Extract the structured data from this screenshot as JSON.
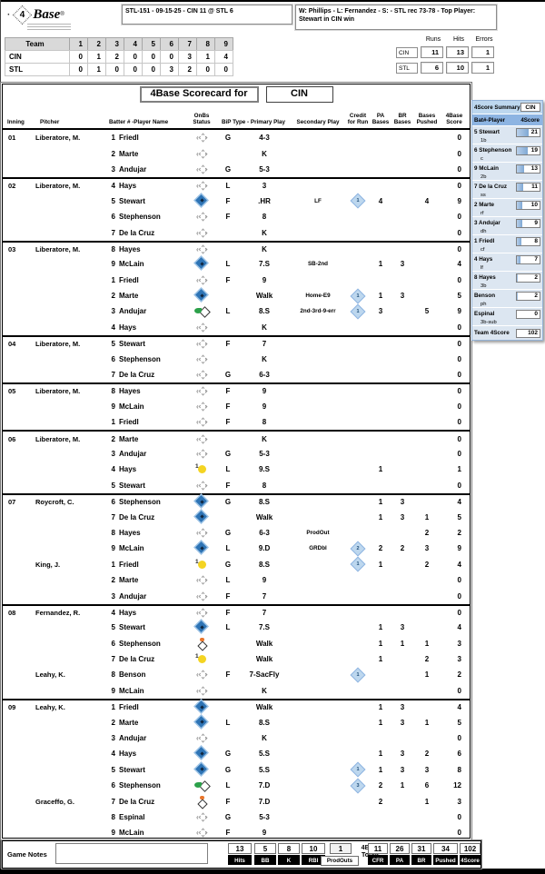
{
  "header": {
    "logo_dot": "·",
    "logo_4": "4",
    "logo_base": "Base",
    "logo_reg": "®",
    "game_info": "STL-151 - 09-15-25 - CIN 11 @ STL 6",
    "result_info": "W: Phillips - L: Fernandez - S:  - STL rec 73-78 - Top Player: Stewart in CIN win"
  },
  "linescore": {
    "team_header": "Team",
    "innings": [
      "1",
      "2",
      "3",
      "4",
      "5",
      "6",
      "7",
      "8",
      "9"
    ],
    "rows": [
      {
        "team": "CIN",
        "values": [
          "0",
          "1",
          "2",
          "0",
          "0",
          "0",
          "3",
          "1",
          "4"
        ]
      },
      {
        "team": "STL",
        "values": [
          "0",
          "1",
          "0",
          "0",
          "0",
          "3",
          "2",
          "0",
          "0"
        ]
      }
    ]
  },
  "rhe": {
    "headers": [
      "Runs",
      "Hits",
      "Errors"
    ],
    "rows": [
      {
        "team": "CIN",
        "values": [
          "11",
          "13",
          "1"
        ]
      },
      {
        "team": "STL",
        "values": [
          "6",
          "10",
          "1"
        ]
      }
    ]
  },
  "scorecard": {
    "title": "4Base Scorecard for",
    "team": "CIN",
    "header_cells": [
      "Inning",
      "Pitcher",
      "Batter # -Player Name",
      "OnBs Status",
      "BiP Type - Primary Play",
      "Secondary Play",
      "Credit\nfor Run",
      "PA\nBases",
      "BR\nBases",
      "Bases\nPushed",
      "4Base\nScore"
    ],
    "innings": [
      {
        "label": "01",
        "rows": [
          {
            "pitcher": "Liberatore, M.",
            "num": "1",
            "name": "Friedl",
            "status": "empty",
            "bip": "G",
            "primary": "4-3",
            "score": "0"
          },
          {
            "num": "2",
            "name": "Marte",
            "status": "empty",
            "primary": "K",
            "score": "0"
          },
          {
            "num": "3",
            "name": "Andujar",
            "status": "empty",
            "bip": "G",
            "primary": "5-3",
            "score": "0"
          }
        ]
      },
      {
        "label": "02",
        "rows": [
          {
            "pitcher": "Liberatore, M.",
            "num": "4",
            "name": "Hays",
            "status": "empty",
            "bip": "L",
            "primary": "3",
            "score": "0"
          },
          {
            "num": "5",
            "name": "Stewart",
            "status": "blue",
            "bip": "F",
            "primary": ".HR",
            "secondary": "LF",
            "credit": "1",
            "pa": "4",
            "pushed": "4",
            "score": "9"
          },
          {
            "num": "6",
            "name": "Stephenson",
            "status": "empty",
            "bip": "F",
            "primary": "8",
            "score": "0"
          },
          {
            "num": "7",
            "name": "De la Cruz",
            "status": "empty",
            "primary": "K",
            "score": "0"
          }
        ]
      },
      {
        "label": "03",
        "rows": [
          {
            "pitcher": "Liberatore, M.",
            "num": "8",
            "name": "Hayes",
            "status": "empty",
            "primary": "K",
            "score": "0"
          },
          {
            "num": "9",
            "name": "McLain",
            "status": "blue",
            "bip": "L",
            "primary": "7.S",
            "secondary": "SB-2nd",
            "pa": "1",
            "br": "3",
            "score": "4"
          },
          {
            "num": "1",
            "name": "Friedl",
            "status": "empty",
            "bip": "F",
            "primary": "9",
            "score": "0"
          },
          {
            "num": "2",
            "name": "Marte",
            "status": "blue",
            "primary": "Walk",
            "secondary": "Home-E9",
            "credit": "1",
            "pa": "1",
            "br": "3",
            "score": "5"
          },
          {
            "num": "3",
            "name": "Andujar",
            "status": "green",
            "bip": "L",
            "primary": "8.S",
            "secondary": "2nd-3rd-9-err",
            "credit": "1",
            "pa": "3",
            "pushed": "5",
            "score": "9"
          },
          {
            "num": "4",
            "name": "Hays",
            "status": "empty",
            "primary": "K",
            "score": "0"
          }
        ]
      },
      {
        "label": "04",
        "rows": [
          {
            "pitcher": "Liberatore, M.",
            "num": "5",
            "name": "Stewart",
            "status": "empty",
            "bip": "F",
            "primary": "7",
            "score": "0"
          },
          {
            "num": "6",
            "name": "Stephenson",
            "status": "empty",
            "primary": "K",
            "score": "0"
          },
          {
            "num": "7",
            "name": "De la Cruz",
            "status": "empty",
            "bip": "G",
            "primary": "6-3",
            "score": "0"
          }
        ]
      },
      {
        "label": "05",
        "rows": [
          {
            "pitcher": "Liberatore, M.",
            "num": "8",
            "name": "Hayes",
            "status": "empty",
            "bip": "F",
            "primary": "9",
            "score": "0"
          },
          {
            "num": "9",
            "name": "McLain",
            "status": "empty",
            "bip": "F",
            "primary": "9",
            "score": "0"
          },
          {
            "num": "1",
            "name": "Friedl",
            "status": "empty",
            "bip": "F",
            "primary": "8",
            "score": "0"
          }
        ]
      },
      {
        "label": "06",
        "rows": [
          {
            "pitcher": "Liberatore, M.",
            "num": "2",
            "name": "Marte",
            "status": "empty",
            "primary": "K",
            "score": "0"
          },
          {
            "num": "3",
            "name": "Andujar",
            "status": "empty",
            "bip": "G",
            "primary": "5-3",
            "score": "0"
          },
          {
            "num": "4",
            "name": "Hays",
            "status": "yellow",
            "bip": "L",
            "primary": "9.S",
            "pa": "1",
            "score": "1"
          },
          {
            "num": "5",
            "name": "Stewart",
            "status": "empty",
            "bip": "F",
            "primary": "8",
            "score": "0"
          }
        ]
      },
      {
        "label": "07",
        "rows": [
          {
            "pitcher": "Roycroft, C.",
            "num": "6",
            "name": "Stephenson",
            "status": "blue",
            "bip": "G",
            "primary": "8.S",
            "pa": "1",
            "br": "3",
            "score": "4"
          },
          {
            "num": "7",
            "name": "De la Cruz",
            "status": "blue",
            "primary": "Walk",
            "pa": "1",
            "br": "3",
            "pushed": "1",
            "score": "5"
          },
          {
            "num": "8",
            "name": "Hayes",
            "status": "empty",
            "bip": "G",
            "primary": "6-3",
            "secondary": "ProdOut",
            "pushed": "2",
            "score": "2"
          },
          {
            "num": "9",
            "name": "McLain",
            "status": "blue",
            "bip": "L",
            "primary": "9.D",
            "secondary": "GRDbl",
            "credit": "2",
            "pa": "2",
            "br": "2",
            "pushed": "3",
            "score": "9"
          },
          {
            "pitcher": "King, J.",
            "num": "1",
            "name": "Friedl",
            "status": "yellow",
            "bip": "G",
            "primary": "8.S",
            "credit": "1",
            "pa": "1",
            "pushed": "2",
            "score": "4"
          },
          {
            "num": "2",
            "name": "Marte",
            "status": "empty",
            "bip": "L",
            "primary": "9",
            "score": "0"
          },
          {
            "num": "3",
            "name": "Andujar",
            "status": "empty",
            "bip": "F",
            "primary": "7",
            "score": "0"
          }
        ]
      },
      {
        "label": "08",
        "rows": [
          {
            "pitcher": "Fernandez, R.",
            "num": "4",
            "name": "Hays",
            "status": "empty",
            "bip": "F",
            "primary": "7",
            "score": "0"
          },
          {
            "num": "5",
            "name": "Stewart",
            "status": "blue",
            "bip": "L",
            "primary": "7.S",
            "pa": "1",
            "br": "3",
            "score": "4"
          },
          {
            "num": "6",
            "name": "Stephenson",
            "status": "orange",
            "primary": "Walk",
            "pa": "1",
            "br": "1",
            "pushed": "1",
            "score": "3"
          },
          {
            "num": "7",
            "name": "De la Cruz",
            "status": "yellow",
            "primary": "Walk",
            "pa": "1",
            "pushed": "2",
            "score": "3"
          },
          {
            "pitcher": "Leahy, K.",
            "num": "8",
            "name": "Benson",
            "status": "empty",
            "bip": "F",
            "primary": "7-SacFly",
            "credit": "1",
            "pushed": "1",
            "score": "2"
          },
          {
            "num": "9",
            "name": "McLain",
            "status": "empty",
            "primary": "K",
            "score": "0"
          }
        ]
      },
      {
        "label": "09",
        "rows": [
          {
            "pitcher": "Leahy, K.",
            "num": "1",
            "name": "Friedl",
            "status": "blue",
            "primary": "Walk",
            "pa": "1",
            "br": "3",
            "score": "4"
          },
          {
            "num": "2",
            "name": "Marte",
            "status": "blue",
            "bip": "L",
            "primary": "8.S",
            "pa": "1",
            "br": "3",
            "pushed": "1",
            "score": "5"
          },
          {
            "num": "3",
            "name": "Andujar",
            "status": "empty",
            "primary": "K",
            "score": "0"
          },
          {
            "num": "4",
            "name": "Hays",
            "status": "blue",
            "bip": "G",
            "primary": "5.S",
            "pa": "1",
            "br": "3",
            "pushed": "2",
            "score": "6"
          },
          {
            "num": "5",
            "name": "Stewart",
            "status": "blue",
            "bip": "G",
            "primary": "5.S",
            "credit": "1",
            "pa": "1",
            "br": "3",
            "pushed": "3",
            "score": "8"
          },
          {
            "num": "6",
            "name": "Stephenson",
            "status": "green",
            "bip": "L",
            "primary": "7.D",
            "credit": "3",
            "pa": "2",
            "br": "1",
            "pushed": "6",
            "score": "12"
          },
          {
            "pitcher": "Graceffo, G.",
            "num": "7",
            "name": "De la Cruz",
            "status": "orange",
            "bip": "F",
            "primary": "7.D",
            "pa": "2",
            "pushed": "1",
            "score": "3"
          },
          {
            "num": "8",
            "name": "Espinal",
            "status": "empty",
            "bip": "G",
            "primary": "5-3",
            "score": "0"
          },
          {
            "num": "9",
            "name": "McLain",
            "status": "empty",
            "bip": "F",
            "primary": "9",
            "score": "0"
          }
        ]
      }
    ]
  },
  "sidebar": {
    "title": "4Score Summary",
    "team": "CIN",
    "col1": "Bat#-Player",
    "col2": "4Score",
    "players": [
      {
        "bat": "5",
        "name": "Stewart",
        "pos": "1b",
        "score": "21"
      },
      {
        "bat": "6",
        "name": "Stephenson",
        "pos": "c",
        "score": "19"
      },
      {
        "bat": "9",
        "name": "McLain",
        "pos": "2b",
        "score": "13"
      },
      {
        "bat": "7",
        "name": "De la Cruz",
        "pos": "ss",
        "score": "11"
      },
      {
        "bat": "2",
        "name": "Marte",
        "pos": "rf",
        "score": "10"
      },
      {
        "bat": "3",
        "name": "Andujar",
        "pos": "dh",
        "score": "9"
      },
      {
        "bat": "1",
        "name": "Friedl",
        "pos": "cf",
        "score": "8"
      },
      {
        "bat": "4",
        "name": "Hays",
        "pos": "lf",
        "score": "7"
      },
      {
        "bat": "8",
        "name": "Hayes",
        "pos": "3b",
        "score": "2"
      },
      {
        "bat": "",
        "name": "Benson",
        "pos": "ph",
        "score": "2"
      },
      {
        "bat": "",
        "name": "Espinal",
        "pos": "3b-sub",
        "score": "0"
      }
    ],
    "team_label": "Team 4Score",
    "team_score": "102"
  },
  "totals": {
    "game_notes_label": "Game Notes",
    "stats": [
      {
        "value": "13",
        "label": "Hits"
      },
      {
        "value": "5",
        "label": "BB"
      },
      {
        "value": "8",
        "label": "K"
      },
      {
        "value": "10",
        "label": "RBI"
      }
    ],
    "prodouts": {
      "value": "1",
      "label": "ProdOuts"
    },
    "totals_label": "4Base\nTotals",
    "totals": [
      {
        "value": "11",
        "label": "CFR"
      },
      {
        "value": "26",
        "label": "PA"
      },
      {
        "value": "31",
        "label": "BR"
      },
      {
        "value": "34",
        "label": "Pushed"
      },
      {
        "value": "102",
        "label": "4Score"
      }
    ]
  },
  "colors": {
    "scored_diamond": "#2e74b5",
    "credit_diamond": "#bdd7ee",
    "sidebar_bg": "#dce6f1",
    "sidebar_header": "#8db4e2",
    "header_gray": "#d9d9d9"
  }
}
